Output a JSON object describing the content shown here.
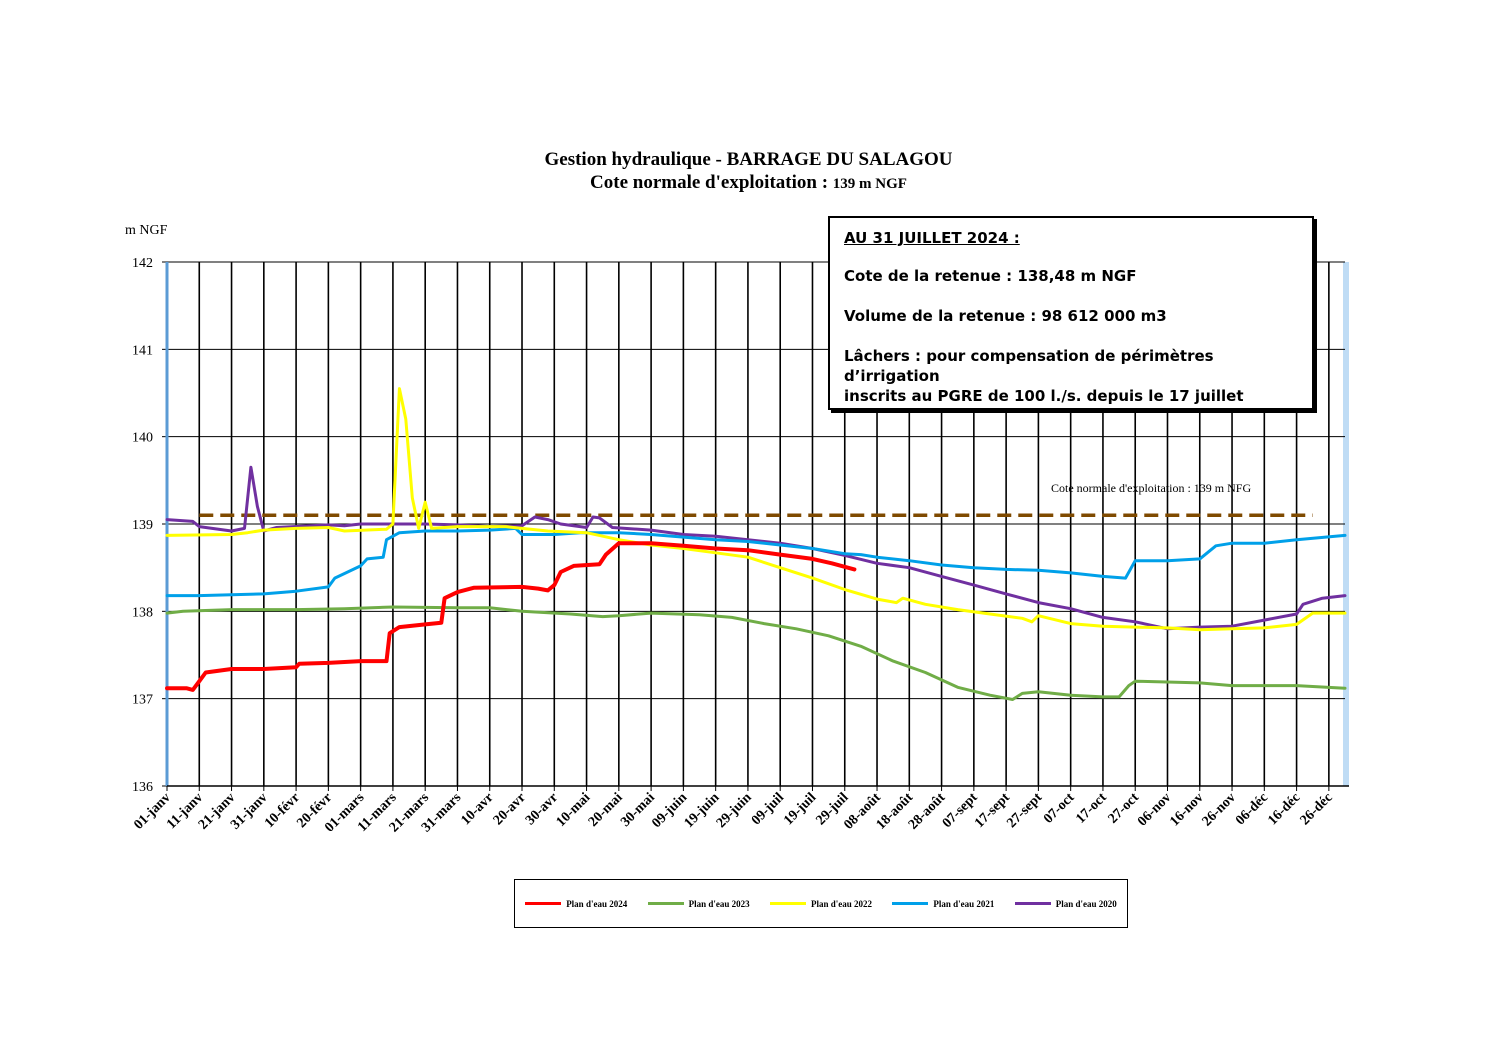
{
  "chart_data": {
    "type": "line",
    "title": "Gestion hydraulique - BARRAGE DU SALAGOU",
    "subtitle_prefix": "Cote normale d'exploitation :",
    "subtitle_value": "139 m NGF",
    "ylabel": "m NGF",
    "ylim": [
      136,
      142
    ],
    "yticks": [
      "136",
      "137",
      "138",
      "139",
      "140",
      "141",
      "142"
    ],
    "x_day_range": [
      0,
      365
    ],
    "xticks": [
      {
        "day": 0,
        "label": "01-janv"
      },
      {
        "day": 10,
        "label": "11-janv"
      },
      {
        "day": 20,
        "label": "21-janv"
      },
      {
        "day": 30,
        "label": "31-janv"
      },
      {
        "day": 40,
        "label": "10-févr"
      },
      {
        "day": 50,
        "label": "20-févr"
      },
      {
        "day": 60,
        "label": "01-mars"
      },
      {
        "day": 70,
        "label": "11-mars"
      },
      {
        "day": 80,
        "label": "21-mars"
      },
      {
        "day": 90,
        "label": "31-mars"
      },
      {
        "day": 100,
        "label": "10-avr"
      },
      {
        "day": 110,
        "label": "20-avr"
      },
      {
        "day": 120,
        "label": "30-avr"
      },
      {
        "day": 130,
        "label": "10-mai"
      },
      {
        "day": 140,
        "label": "20-mai"
      },
      {
        "day": 150,
        "label": "30-mai"
      },
      {
        "day": 160,
        "label": "09-juin"
      },
      {
        "day": 170,
        "label": "19-juin"
      },
      {
        "day": 180,
        "label": "29-juin"
      },
      {
        "day": 190,
        "label": "09-juil"
      },
      {
        "day": 200,
        "label": "19-juil"
      },
      {
        "day": 210,
        "label": "29-juil"
      },
      {
        "day": 220,
        "label": "08-août"
      },
      {
        "day": 230,
        "label": "18-août"
      },
      {
        "day": 240,
        "label": "28-août"
      },
      {
        "day": 250,
        "label": "07-sept"
      },
      {
        "day": 260,
        "label": "17-sept"
      },
      {
        "day": 270,
        "label": "27-sept"
      },
      {
        "day": 280,
        "label": "07-oct"
      },
      {
        "day": 290,
        "label": "17-oct"
      },
      {
        "day": 300,
        "label": "27-oct"
      },
      {
        "day": 310,
        "label": "06-nov"
      },
      {
        "day": 320,
        "label": "16-nov"
      },
      {
        "day": 330,
        "label": "26-nov"
      },
      {
        "day": 340,
        "label": "06-déc"
      },
      {
        "day": 350,
        "label": "16-déc"
      },
      {
        "day": 360,
        "label": "26-déc"
      }
    ],
    "grid": true,
    "reference_line": {
      "value": 139.1,
      "label": "Cote normale d'exploitation : 139 m NFG",
      "color": "#7f4a00"
    },
    "series": [
      {
        "name": "Plan d'eau 2024",
        "color": "#ff0000",
        "width": 4,
        "points": [
          [
            0,
            137.12
          ],
          [
            6,
            137.12
          ],
          [
            8,
            137.1
          ],
          [
            10,
            137.2
          ],
          [
            12,
            137.3
          ],
          [
            20,
            137.34
          ],
          [
            30,
            137.34
          ],
          [
            40,
            137.36
          ],
          [
            41,
            137.4
          ],
          [
            50,
            137.41
          ],
          [
            60,
            137.43
          ],
          [
            68,
            137.43
          ],
          [
            69,
            137.75
          ],
          [
            72,
            137.82
          ],
          [
            80,
            137.85
          ],
          [
            85,
            137.87
          ],
          [
            86,
            138.15
          ],
          [
            90,
            138.22
          ],
          [
            95,
            138.27
          ],
          [
            110,
            138.28
          ],
          [
            115,
            138.26
          ],
          [
            118,
            138.24
          ],
          [
            120,
            138.3
          ],
          [
            122,
            138.45
          ],
          [
            126,
            138.52
          ],
          [
            134,
            138.54
          ],
          [
            136,
            138.65
          ],
          [
            140,
            138.78
          ],
          [
            150,
            138.78
          ],
          [
            160,
            138.75
          ],
          [
            170,
            138.72
          ],
          [
            180,
            138.7
          ],
          [
            190,
            138.65
          ],
          [
            200,
            138.6
          ],
          [
            206,
            138.55
          ],
          [
            213,
            138.48
          ]
        ]
      },
      {
        "name": "Plan d'eau 2023",
        "color": "#70ad47",
        "width": 3,
        "points": [
          [
            0,
            137.98
          ],
          [
            5,
            138.0
          ],
          [
            20,
            138.02
          ],
          [
            40,
            138.02
          ],
          [
            55,
            138.03
          ],
          [
            70,
            138.05
          ],
          [
            90,
            138.04
          ],
          [
            100,
            138.04
          ],
          [
            110,
            138.0
          ],
          [
            125,
            137.97
          ],
          [
            135,
            137.94
          ],
          [
            140,
            137.95
          ],
          [
            150,
            137.98
          ],
          [
            165,
            137.96
          ],
          [
            175,
            137.93
          ],
          [
            185,
            137.86
          ],
          [
            195,
            137.8
          ],
          [
            205,
            137.72
          ],
          [
            215,
            137.6
          ],
          [
            225,
            137.43
          ],
          [
            235,
            137.3
          ],
          [
            245,
            137.13
          ],
          [
            255,
            137.04
          ],
          [
            262,
            136.99
          ],
          [
            265,
            137.06
          ],
          [
            270,
            137.08
          ],
          [
            280,
            137.04
          ],
          [
            290,
            137.02
          ],
          [
            295,
            137.02
          ],
          [
            298,
            137.15
          ],
          [
            300,
            137.2
          ],
          [
            320,
            137.18
          ],
          [
            330,
            137.15
          ],
          [
            350,
            137.15
          ],
          [
            365,
            137.12
          ]
        ]
      },
      {
        "name": "Plan d'eau 2022",
        "color": "#ffff00",
        "width": 3,
        "points": [
          [
            0,
            138.87
          ],
          [
            20,
            138.88
          ],
          [
            25,
            138.9
          ],
          [
            30,
            138.93
          ],
          [
            40,
            138.95
          ],
          [
            50,
            138.96
          ],
          [
            55,
            138.92
          ],
          [
            68,
            138.94
          ],
          [
            70,
            139.0
          ],
          [
            72,
            140.55
          ],
          [
            74,
            140.2
          ],
          [
            76,
            139.3
          ],
          [
            78,
            138.95
          ],
          [
            80,
            139.25
          ],
          [
            82,
            138.95
          ],
          [
            90,
            138.97
          ],
          [
            105,
            138.97
          ],
          [
            110,
            138.95
          ],
          [
            118,
            138.92
          ],
          [
            130,
            138.9
          ],
          [
            140,
            138.82
          ],
          [
            150,
            138.76
          ],
          [
            160,
            138.72
          ],
          [
            170,
            138.67
          ],
          [
            180,
            138.62
          ],
          [
            190,
            138.5
          ],
          [
            200,
            138.38
          ],
          [
            210,
            138.25
          ],
          [
            220,
            138.14
          ],
          [
            226,
            138.1
          ],
          [
            228,
            138.15
          ],
          [
            235,
            138.08
          ],
          [
            245,
            138.02
          ],
          [
            255,
            137.97
          ],
          [
            265,
            137.92
          ],
          [
            268,
            137.88
          ],
          [
            270,
            137.95
          ],
          [
            280,
            137.86
          ],
          [
            290,
            137.83
          ],
          [
            300,
            137.82
          ],
          [
            310,
            137.81
          ],
          [
            320,
            137.79
          ],
          [
            330,
            137.8
          ],
          [
            340,
            137.81
          ],
          [
            350,
            137.85
          ],
          [
            355,
            137.98
          ],
          [
            365,
            137.98
          ]
        ]
      },
      {
        "name": "Plan d'eau 2021",
        "color": "#00a0e9",
        "width": 3,
        "points": [
          [
            0,
            138.18
          ],
          [
            10,
            138.18
          ],
          [
            20,
            138.19
          ],
          [
            30,
            138.2
          ],
          [
            40,
            138.23
          ],
          [
            50,
            138.28
          ],
          [
            52,
            138.38
          ],
          [
            56,
            138.45
          ],
          [
            60,
            138.52
          ],
          [
            62,
            138.6
          ],
          [
            67,
            138.62
          ],
          [
            68,
            138.82
          ],
          [
            72,
            138.9
          ],
          [
            80,
            138.92
          ],
          [
            90,
            138.92
          ],
          [
            100,
            138.93
          ],
          [
            108,
            138.95
          ],
          [
            110,
            138.88
          ],
          [
            120,
            138.88
          ],
          [
            128,
            138.9
          ],
          [
            140,
            138.9
          ],
          [
            150,
            138.88
          ],
          [
            160,
            138.85
          ],
          [
            170,
            138.82
          ],
          [
            180,
            138.8
          ],
          [
            190,
            138.76
          ],
          [
            200,
            138.72
          ],
          [
            210,
            138.66
          ],
          [
            215,
            138.65
          ],
          [
            220,
            138.62
          ],
          [
            230,
            138.58
          ],
          [
            240,
            138.53
          ],
          [
            250,
            138.5
          ],
          [
            260,
            138.48
          ],
          [
            270,
            138.47
          ],
          [
            280,
            138.44
          ],
          [
            290,
            138.4
          ],
          [
            297,
            138.38
          ],
          [
            300,
            138.58
          ],
          [
            310,
            138.58
          ],
          [
            320,
            138.6
          ],
          [
            325,
            138.75
          ],
          [
            330,
            138.78
          ],
          [
            340,
            138.78
          ],
          [
            350,
            138.82
          ],
          [
            365,
            138.87
          ]
        ]
      },
      {
        "name": "Plan d'eau 2020",
        "color": "#7030a0",
        "width": 3,
        "points": [
          [
            0,
            139.05
          ],
          [
            8,
            139.03
          ],
          [
            10,
            138.97
          ],
          [
            20,
            138.92
          ],
          [
            24,
            138.95
          ],
          [
            26,
            139.65
          ],
          [
            28,
            139.2
          ],
          [
            30,
            138.92
          ],
          [
            34,
            138.96
          ],
          [
            50,
            138.99
          ],
          [
            55,
            138.98
          ],
          [
            60,
            139.0
          ],
          [
            80,
            139.0
          ],
          [
            90,
            138.99
          ],
          [
            100,
            138.97
          ],
          [
            110,
            138.98
          ],
          [
            114,
            139.08
          ],
          [
            118,
            139.05
          ],
          [
            122,
            139.0
          ],
          [
            130,
            138.96
          ],
          [
            132,
            139.08
          ],
          [
            134,
            139.07
          ],
          [
            138,
            138.96
          ],
          [
            150,
            138.93
          ],
          [
            160,
            138.88
          ],
          [
            170,
            138.86
          ],
          [
            180,
            138.82
          ],
          [
            190,
            138.78
          ],
          [
            200,
            138.72
          ],
          [
            210,
            138.64
          ],
          [
            220,
            138.55
          ],
          [
            230,
            138.5
          ],
          [
            240,
            138.4
          ],
          [
            250,
            138.3
          ],
          [
            260,
            138.2
          ],
          [
            270,
            138.1
          ],
          [
            280,
            138.03
          ],
          [
            290,
            137.93
          ],
          [
            300,
            137.88
          ],
          [
            310,
            137.8
          ],
          [
            320,
            137.82
          ],
          [
            330,
            137.83
          ],
          [
            340,
            137.9
          ],
          [
            350,
            137.97
          ],
          [
            352,
            138.08
          ],
          [
            358,
            138.15
          ],
          [
            365,
            138.18
          ]
        ]
      }
    ]
  },
  "info_box": {
    "heading": "AU 31 JUILLET 2024 :",
    "line1": "Cote de la retenue : 138,48 m NGF",
    "line2": "Volume de la retenue : 98 612 000 m3",
    "line3a": "Lâchers : pour compensation de périmètres d’irrigation",
    "line3b": "inscrits au PGRE de 100 l./s. depuis le 17 juillet"
  }
}
